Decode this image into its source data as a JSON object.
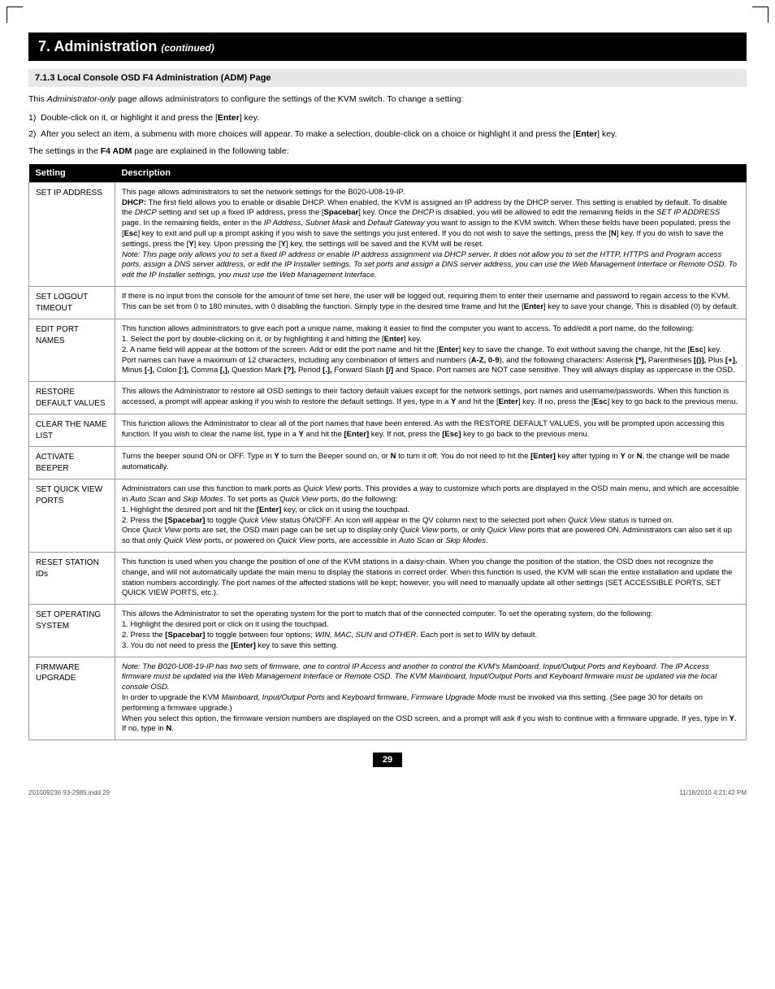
{
  "header": {
    "title": "7. Administration",
    "continued": "(continued)"
  },
  "subsection": "7.1.3 Local Console OSD F4 Administration (ADM) Page",
  "intro": "This Administrator-only page allows administrators to configure the settings of the KVM switch. To change a setting:",
  "step1": "1)  Double-click on it, or highlight it and press the [Enter] key.",
  "step2": "2)  After you select an item, a submenu with more choices will appear. To make a selection, double-click on a choice or highlight it and press the [Enter] key.",
  "tableIntro": "The settings in the F4 ADM page are explained in the following table:",
  "th": {
    "setting": "Setting",
    "desc": "Description"
  },
  "rows": {
    "r1": {
      "s": "SET IP ADDRESS"
    },
    "r2": {
      "s": "SET LOGOUT TIMEOUT"
    },
    "r3": {
      "s": "EDIT PORT NAMES"
    },
    "r4": {
      "s": "RESTORE DEFAULT VALUES"
    },
    "r5": {
      "s": "CLEAR THE NAME LIST"
    },
    "r6": {
      "s": "ACTIVATE BEEPER"
    },
    "r7": {
      "s": "SET QUICK VIEW PORTS"
    },
    "r8": {
      "s": "RESET STATION IDs"
    },
    "r9": {
      "s": "SET OPERATING SYSTEM"
    },
    "r10": {
      "s": "FIRMWARE UPGRADE"
    }
  },
  "pageNum": "29",
  "footer": {
    "left": "201009236 93-2985.indd   29",
    "right": "11/18/2010   4:21:42 PM"
  }
}
